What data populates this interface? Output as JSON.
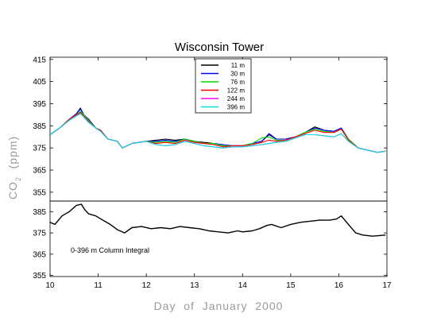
{
  "chart_data": [
    {
      "type": "line",
      "title": "Wisconsin Tower",
      "ylabel_main": "CO",
      "ylabel_sub": "2",
      "ylabel_tail": "  (ppm)",
      "ylim": [
        351,
        416
      ],
      "yticks": [
        355,
        365,
        375,
        385,
        395,
        405,
        415
      ],
      "xlim": [
        10,
        17
      ],
      "legend_position": "top-center",
      "series": [
        {
          "name": "11 m",
          "color": "#000000",
          "x": [
            10.0,
            10.2,
            10.4,
            10.55,
            10.63,
            10.7,
            10.8,
            10.95,
            11.05,
            11.2,
            11.4,
            11.5,
            11.7,
            12.0,
            12.2,
            12.4,
            12.6,
            12.8,
            13.0,
            13.2,
            13.4,
            13.6,
            13.8,
            14.0,
            14.2,
            14.4,
            14.55,
            14.7,
            14.9,
            15.1,
            15.3,
            15.5,
            15.7,
            15.9,
            16.05,
            16.2,
            16.4,
            16.6,
            16.8,
            16.97
          ],
          "y": [
            381,
            384,
            388,
            390.5,
            393,
            390,
            388,
            384,
            383,
            379,
            378,
            375,
            377,
            378,
            378.5,
            379,
            378.5,
            379,
            378,
            377.5,
            377,
            376,
            376,
            376,
            377,
            378,
            381,
            379,
            379,
            380,
            382,
            384.5,
            383,
            382.5,
            384,
            379,
            375,
            374,
            373,
            373.5
          ]
        },
        {
          "name": "30 m",
          "color": "#0000ff",
          "x": [
            10.0,
            10.2,
            10.4,
            10.55,
            10.63,
            10.7,
            10.8,
            10.95,
            11.05,
            11.2,
            11.4,
            11.5,
            11.7,
            12.0,
            12.2,
            12.4,
            12.6,
            12.8,
            13.0,
            13.2,
            13.4,
            13.6,
            13.8,
            14.0,
            14.2,
            14.4,
            14.55,
            14.7,
            14.9,
            15.1,
            15.3,
            15.5,
            15.7,
            15.9,
            16.05,
            16.2,
            16.4,
            16.6,
            16.8,
            16.97
          ],
          "y": [
            381,
            384,
            388,
            390.5,
            392.5,
            390,
            388,
            384,
            383,
            379,
            378,
            375,
            377,
            378,
            378,
            378.5,
            378,
            379,
            378,
            377,
            377,
            376.5,
            376,
            376,
            377,
            378,
            381.5,
            379,
            379,
            380,
            382,
            384,
            383,
            382.5,
            384,
            379,
            375,
            374,
            373,
            373.5
          ]
        },
        {
          "name": "76 m",
          "color": "#00dd00",
          "x": [
            10.0,
            10.2,
            10.4,
            10.55,
            10.63,
            10.7,
            10.8,
            10.95,
            11.05,
            11.2,
            11.4,
            11.5,
            11.7,
            12.0,
            12.2,
            12.4,
            12.6,
            12.8,
            13.0,
            13.2,
            13.4,
            13.6,
            13.8,
            14.0,
            14.2,
            14.4,
            14.55,
            14.7,
            14.9,
            15.1,
            15.3,
            15.5,
            15.7,
            15.9,
            16.05,
            16.2,
            16.4,
            16.6,
            16.8,
            16.97
          ],
          "y": [
            381,
            384,
            388,
            390,
            391.5,
            390,
            387.5,
            384,
            383,
            379,
            378,
            375,
            377,
            378,
            377.5,
            378,
            377.5,
            379,
            378,
            377,
            377,
            376,
            376,
            376,
            377,
            379.5,
            380,
            378.5,
            378.5,
            380,
            382,
            383.5,
            382.5,
            382,
            383.5,
            379,
            375,
            374,
            373,
            373.5
          ]
        },
        {
          "name": "122 m",
          "color": "#ff0000",
          "x": [
            10.0,
            10.2,
            10.4,
            10.55,
            10.63,
            10.7,
            10.8,
            10.95,
            11.05,
            11.2,
            11.4,
            11.5,
            11.7,
            12.0,
            12.2,
            12.4,
            12.6,
            12.8,
            13.0,
            13.2,
            13.4,
            13.6,
            13.8,
            14.0,
            14.2,
            14.4,
            14.55,
            14.7,
            14.9,
            15.1,
            15.3,
            15.5,
            15.7,
            15.9,
            16.05,
            16.2,
            16.4,
            16.6,
            16.8,
            16.97
          ],
          "y": [
            381,
            384,
            388,
            390,
            391,
            389.5,
            387,
            384,
            383,
            379,
            378,
            375,
            377,
            378,
            377,
            377.5,
            377,
            378.5,
            377.5,
            377,
            376.5,
            375.5,
            376,
            376,
            376.5,
            377.5,
            378.5,
            378,
            378.5,
            380,
            381.5,
            383,
            382,
            382,
            383.5,
            378.5,
            375,
            374,
            373,
            373.5
          ]
        },
        {
          "name": "244 m",
          "color": "#ff00ff",
          "x": [
            10.0,
            10.2,
            10.4,
            10.55,
            10.63,
            10.7,
            10.8,
            10.95,
            11.05,
            11.2,
            11.4,
            11.5,
            11.7,
            12.0,
            12.2,
            12.4,
            12.6,
            12.8,
            13.0,
            13.2,
            13.4,
            13.6,
            13.8,
            14.0,
            14.2,
            14.4,
            14.55,
            14.7,
            14.9,
            15.1,
            15.3,
            15.5,
            15.7,
            15.9,
            16.05,
            16.2,
            16.4,
            16.6,
            16.8,
            16.97
          ],
          "y": [
            381,
            384,
            387.5,
            389.5,
            390.5,
            389,
            386.5,
            384,
            382.5,
            379,
            378,
            375,
            377,
            378,
            376.5,
            376,
            376.5,
            378,
            377,
            376,
            375.5,
            375,
            375.5,
            375.5,
            376,
            376.5,
            377,
            377.5,
            378,
            379.5,
            381,
            381,
            380.5,
            380,
            381.5,
            378,
            375,
            374,
            373,
            373.5
          ]
        },
        {
          "name": "396 m",
          "color": "#00e0e0",
          "x": [
            10.0,
            10.2,
            10.4,
            10.55,
            10.63,
            10.7,
            10.8,
            10.95,
            11.05,
            11.2,
            11.4,
            11.5,
            11.7,
            12.0,
            12.2,
            12.4,
            12.6,
            12.8,
            13.0,
            13.2,
            13.4,
            13.6,
            13.8,
            14.0,
            14.2,
            14.4,
            14.55,
            14.7,
            14.9,
            15.1,
            15.3,
            15.5,
            15.7,
            15.9,
            16.05,
            16.2,
            16.4,
            16.6,
            16.8,
            16.97
          ],
          "y": [
            381,
            384,
            387.5,
            389.5,
            390.5,
            389,
            386.5,
            384,
            382.5,
            379,
            378,
            375,
            377,
            378,
            376.5,
            376,
            376.5,
            378,
            377,
            376,
            375.5,
            375,
            375.5,
            375.5,
            376,
            376.5,
            377,
            377.5,
            378,
            379.5,
            381,
            381,
            380.5,
            380,
            381.5,
            378,
            375,
            374,
            373,
            373.5
          ]
        }
      ]
    },
    {
      "type": "line",
      "annotation": "0-396 m Column Integral",
      "ylim": [
        354.5,
        390
      ],
      "yticks": [
        355,
        365,
        375,
        385
      ],
      "xlim": [
        10,
        17
      ],
      "xticks": [
        10,
        11,
        12,
        13,
        14,
        15,
        16,
        17
      ],
      "xlabel": "Day  of  January  2000",
      "series": [
        {
          "color": "#000000",
          "x": [
            10.0,
            10.1,
            10.25,
            10.4,
            10.55,
            10.65,
            10.72,
            10.8,
            10.95,
            11.1,
            11.25,
            11.4,
            11.55,
            11.7,
            11.9,
            12.1,
            12.3,
            12.5,
            12.7,
            12.9,
            13.1,
            13.3,
            13.5,
            13.7,
            13.9,
            14.0,
            14.2,
            14.35,
            14.5,
            14.6,
            14.8,
            15.0,
            15.2,
            15.4,
            15.6,
            15.8,
            15.95,
            16.05,
            16.2,
            16.35,
            16.5,
            16.7,
            16.97
          ],
          "y": [
            380,
            379,
            383,
            385,
            388,
            388.5,
            386,
            384,
            383,
            381,
            379,
            376.5,
            375,
            377.5,
            378,
            377,
            377.5,
            377,
            378,
            377.5,
            377,
            376,
            375.5,
            375,
            376,
            375.5,
            376,
            377,
            378.5,
            379,
            377.5,
            379,
            380,
            380.5,
            381,
            381,
            381.5,
            383,
            379,
            375,
            374,
            373.5,
            374
          ]
        }
      ]
    }
  ]
}
